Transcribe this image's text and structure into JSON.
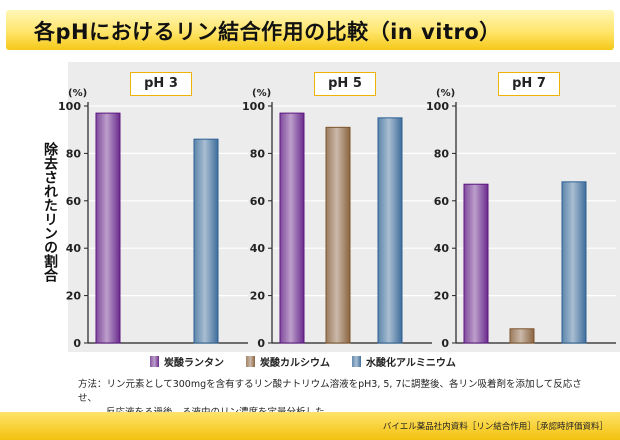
{
  "title": "各pHにおけるリン結合作用の比較（in vitro）",
  "ylabel": "除去されたリンの割合",
  "unit": "(%)",
  "method": {
    "line1": "方法：リン元素として300mgを含有するリン酸ナトリウム溶液をpH3, 5, 7に調整後、各リン吸着剤を添加して反応させ、",
    "line2": "反応液をろ過後、ろ液中のリン濃度を定量分析した。"
  },
  "footer": "バイエル薬品社内資料［リン結合作用］［承認時評価資料］",
  "legend": [
    {
      "label": "炭酸ランタン",
      "color": "#6a2a8c"
    },
    {
      "label": "炭酸カルシウム",
      "color": "#8a6440"
    },
    {
      "label": "水酸化アルミニウム",
      "color": "#3f6e9c"
    }
  ],
  "chart_data": [
    {
      "type": "bar",
      "title": "pH 3",
      "categories": [
        "炭酸ランタン",
        "炭酸カルシウム",
        "水酸化アルミニウム"
      ],
      "values": [
        97,
        null,
        86
      ],
      "ylim": [
        0,
        100
      ],
      "yticks": [
        0,
        20,
        40,
        60,
        80,
        100
      ],
      "grid": true
    },
    {
      "type": "bar",
      "title": "pH 5",
      "categories": [
        "炭酸ランタン",
        "炭酸カルシウム",
        "水酸化アルミニウム"
      ],
      "values": [
        97,
        91,
        95
      ],
      "ylim": [
        0,
        100
      ],
      "yticks": [
        0,
        20,
        40,
        60,
        80,
        100
      ],
      "grid": true
    },
    {
      "type": "bar",
      "title": "pH 7",
      "categories": [
        "炭酸ランタン",
        "炭酸カルシウム",
        "水酸化アルミニウム"
      ],
      "values": [
        67,
        6,
        68
      ],
      "ylim": [
        0,
        100
      ],
      "yticks": [
        0,
        20,
        40,
        60,
        80,
        100
      ],
      "grid": true
    }
  ]
}
